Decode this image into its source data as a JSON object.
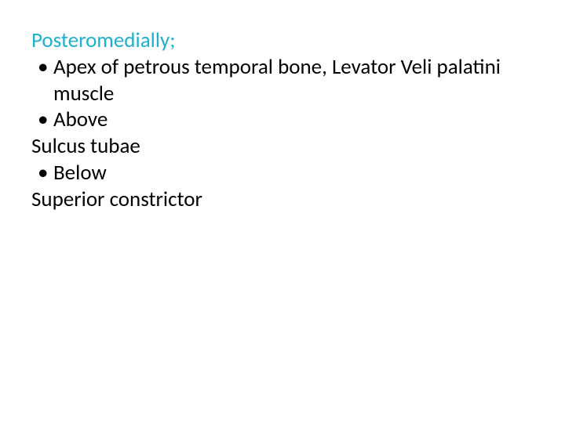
{
  "slide": {
    "heading": "Posteromedially;",
    "heading_color": "#1eb0cf",
    "body_color": "#000000",
    "background_color": "#ffffff",
    "font_family": "Calibri",
    "font_size_pt": 20,
    "lines": [
      {
        "kind": "bullet",
        "text": "Apex of petrous temporal bone, Levator Veli palatini muscle"
      },
      {
        "kind": "bullet",
        "text": "Above"
      },
      {
        "kind": "plain",
        "text": "Sulcus tubae"
      },
      {
        "kind": "bullet",
        "text": "Below"
      },
      {
        "kind": "plain",
        "text": "Superior constrictor"
      }
    ],
    "bullet_glyph": "•"
  }
}
